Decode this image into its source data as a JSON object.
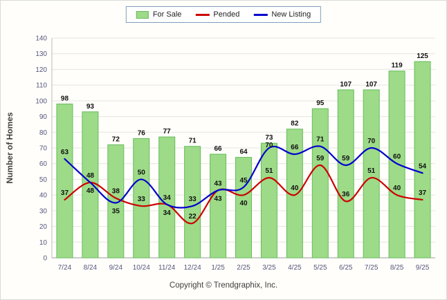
{
  "footer": "Copyright © Trendgraphix, Inc.",
  "chart_data": {
    "type": "bar+line",
    "title": "",
    "xlabel": "",
    "ylabel": "Number of Homes",
    "ylim": [
      0,
      140
    ],
    "ytick_step": 10,
    "grid": true,
    "legend_position": "top",
    "categories": [
      "7/24",
      "8/24",
      "9/24",
      "10/24",
      "11/24",
      "12/24",
      "1/25",
      "2/25",
      "3/25",
      "4/25",
      "5/25",
      "6/25",
      "7/25",
      "8/25",
      "9/25"
    ],
    "series": [
      {
        "name": "For Sale",
        "type": "bar",
        "color": "#9ddb88",
        "border_color": "#66bb5c",
        "values": [
          98,
          93,
          72,
          76,
          77,
          71,
          66,
          64,
          73,
          82,
          95,
          107,
          107,
          119,
          125
        ]
      },
      {
        "name": "Pended",
        "type": "line",
        "color": "#cc0000",
        "values": [
          37,
          48,
          38,
          33,
          34,
          22,
          43,
          40,
          51,
          40,
          59,
          36,
          51,
          40,
          37
        ]
      },
      {
        "name": "New Listing",
        "type": "line",
        "color": "#0000cc",
        "values": [
          63,
          48,
          35,
          50,
          34,
          33,
          43,
          45,
          70,
          66,
          71,
          59,
          70,
          60,
          54
        ]
      }
    ]
  }
}
